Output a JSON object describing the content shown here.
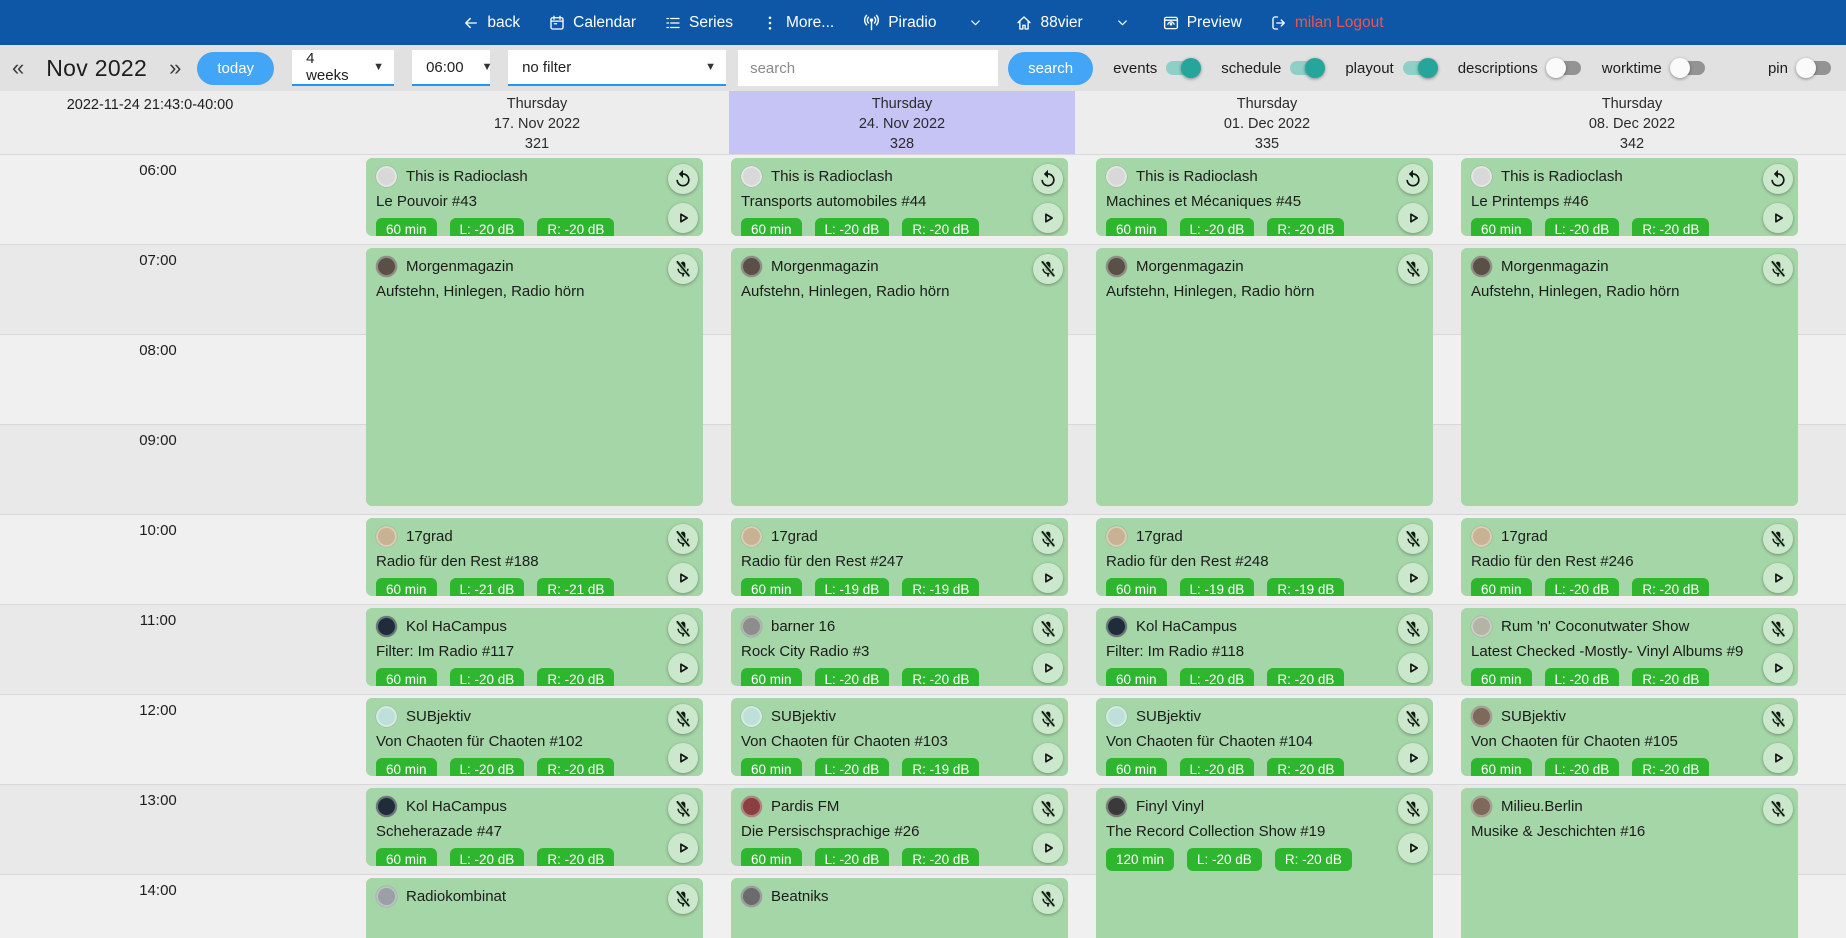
{
  "navbar": {
    "items": [
      {
        "icon": "arrow-left-icon",
        "label": "back"
      },
      {
        "icon": "calendar-icon",
        "label": "Calendar"
      },
      {
        "icon": "list-icon",
        "label": "Series"
      },
      {
        "icon": "kebab-icon",
        "label": "More..."
      },
      {
        "icon": "antenna-icon",
        "label": "Piradio"
      },
      {
        "icon": "chevron-down-icon",
        "label": ""
      },
      {
        "icon": "home-icon",
        "label": "88vier"
      },
      {
        "icon": "chevron-down-icon",
        "label": ""
      },
      {
        "icon": "preview-icon",
        "label": "Preview"
      },
      {
        "icon": "logout-icon",
        "label": "milan Logout",
        "color": "#ef5350"
      }
    ]
  },
  "toolbar": {
    "prev_label": "«",
    "month": "Nov 2022",
    "next_label": "»",
    "today_label": "today",
    "range_value": "4 weeks",
    "time_value": "06:00",
    "filter_value": "no filter",
    "search_placeholder": "search",
    "search_label": "search",
    "toggles": [
      {
        "label": "events",
        "on": true
      },
      {
        "label": "schedule",
        "on": true
      },
      {
        "label": "playout",
        "on": true
      },
      {
        "label": "descriptions",
        "on": false
      },
      {
        "label": "worktime",
        "on": false
      }
    ],
    "pin_toggle": {
      "label": "pin",
      "on": false
    }
  },
  "colors": {
    "navbar": "#0d57a6",
    "accent_blue": "#42a5f5",
    "underline_blue": "#2196f3",
    "event_green": "#a5d6a7",
    "badge_green": "#2eb62e",
    "toggle_on": "#26a69a",
    "highlight_purple": "#c6c4f4",
    "logout_red": "#ef5350"
  },
  "grid": {
    "timestamp": "2022-11-24 21:43:0-40:00",
    "times": [
      "06:00",
      "07:00",
      "08:00",
      "09:00",
      "10:00",
      "11:00",
      "12:00",
      "13:00",
      "14:00"
    ],
    "columns": [
      {
        "day": "Thursday",
        "date": "17. Nov 2022",
        "day_number": "321",
        "highlighted": false,
        "events": [
          {
            "show": "This is Radioclash",
            "episode": "Le Pouvoir #43",
            "start": 6,
            "hours": 1,
            "badges": [
              "60 min",
              "L: -20 dB",
              "R: -20 dB"
            ],
            "icons": [
              "replay",
              "play"
            ],
            "logo": "#d8d8d8"
          },
          {
            "show": "Morgenmagazin",
            "episode": "Aufstehn, Hinlegen, Radio hörn",
            "start": 7,
            "hours": 3,
            "badges": [],
            "icons": [
              "mic-off"
            ],
            "logo": "#5a5048"
          },
          {
            "show": "17grad",
            "episode": "Radio für den Rest #188",
            "start": 10,
            "hours": 1,
            "badges": [
              "60 min",
              "L: -21 dB",
              "R: -21 dB"
            ],
            "icons": [
              "mic-off",
              "play"
            ],
            "logo": "#c9b294"
          },
          {
            "show": "Kol HaCampus",
            "episode": "Filter: Im Radio #117",
            "start": 11,
            "hours": 1,
            "badges": [
              "60 min",
              "L: -20 dB",
              "R: -20 dB"
            ],
            "icons": [
              "mic-off",
              "play"
            ],
            "logo": "#1f2d3a"
          },
          {
            "show": "SUBjektiv",
            "episode": "Von Chaoten für Chaoten #102",
            "start": 12,
            "hours": 1,
            "badges": [
              "60 min",
              "L: -20 dB",
              "R: -20 dB"
            ],
            "icons": [
              "mic-off",
              "play"
            ],
            "logo": "#bfe0d8"
          },
          {
            "show": "Kol HaCampus",
            "episode": "Scheherazade #47",
            "start": 13,
            "hours": 1,
            "badges": [
              "60 min",
              "L: -20 dB",
              "R: -20 dB"
            ],
            "icons": [
              "mic-off",
              "play"
            ],
            "logo": "#1f2d3a"
          },
          {
            "show": "Radiokombinat",
            "episode": "",
            "start": 14,
            "hours": 1,
            "badges": [],
            "icons": [
              "mic-off"
            ],
            "logo": "#9aa0a6"
          }
        ]
      },
      {
        "day": "Thursday",
        "date": "24. Nov 2022",
        "day_number": "328",
        "highlighted": true,
        "events": [
          {
            "show": "This is Radioclash",
            "episode": "Transports automobiles #44",
            "start": 6,
            "hours": 1,
            "badges": [
              "60 min",
              "L: -20 dB",
              "R: -20 dB"
            ],
            "icons": [
              "replay",
              "play"
            ],
            "logo": "#d8d8d8"
          },
          {
            "show": "Morgenmagazin",
            "episode": "Aufstehn, Hinlegen, Radio hörn",
            "start": 7,
            "hours": 3,
            "badges": [],
            "icons": [
              "mic-off"
            ],
            "logo": "#5a5048"
          },
          {
            "show": "17grad",
            "episode": "Radio für den Rest #247",
            "start": 10,
            "hours": 1,
            "badges": [
              "60 min",
              "L: -19 dB",
              "R: -19 dB"
            ],
            "icons": [
              "mic-off",
              "play"
            ],
            "logo": "#c9b294"
          },
          {
            "show": "barner 16",
            "episode": "Rock City Radio #3",
            "start": 11,
            "hours": 1,
            "badges": [
              "60 min",
              "L: -20 dB",
              "R: -20 dB"
            ],
            "icons": [
              "mic-off",
              "play"
            ],
            "logo": "#8d8d8d"
          },
          {
            "show": "SUBjektiv",
            "episode": "Von Chaoten für Chaoten #103",
            "start": 12,
            "hours": 1,
            "badges": [
              "60 min",
              "L: -20 dB",
              "R: -19 dB"
            ],
            "icons": [
              "mic-off",
              "play"
            ],
            "logo": "#bfe0d8"
          },
          {
            "show": "Pardis FM",
            "episode": "Die Persischsprachige #26",
            "start": 13,
            "hours": 1,
            "badges": [
              "60 min",
              "L: -20 dB",
              "R: -20 dB"
            ],
            "icons": [
              "mic-off",
              "play"
            ],
            "logo": "#8a4040"
          },
          {
            "show": "Beatniks",
            "episode": "",
            "start": 14,
            "hours": 1,
            "badges": [],
            "icons": [
              "mic-off"
            ],
            "logo": "#6b6b6b"
          }
        ]
      },
      {
        "day": "Thursday",
        "date": "01. Dec 2022",
        "day_number": "335",
        "highlighted": false,
        "events": [
          {
            "show": "This is Radioclash",
            "episode": "Machines et Mécaniques #45",
            "start": 6,
            "hours": 1,
            "badges": [
              "60 min",
              "L: -20 dB",
              "R: -20 dB"
            ],
            "icons": [
              "replay",
              "play"
            ],
            "logo": "#d8d8d8"
          },
          {
            "show": "Morgenmagazin",
            "episode": "Aufstehn, Hinlegen, Radio hörn",
            "start": 7,
            "hours": 3,
            "badges": [],
            "icons": [
              "mic-off"
            ],
            "logo": "#5a5048"
          },
          {
            "show": "17grad",
            "episode": "Radio für den Rest #248",
            "start": 10,
            "hours": 1,
            "badges": [
              "60 min",
              "L: -19 dB",
              "R: -19 dB"
            ],
            "icons": [
              "mic-off",
              "play"
            ],
            "logo": "#c9b294"
          },
          {
            "show": "Kol HaCampus",
            "episode": "Filter: Im Radio #118",
            "start": 11,
            "hours": 1,
            "badges": [
              "60 min",
              "L: -20 dB",
              "R: -20 dB"
            ],
            "icons": [
              "mic-off",
              "play"
            ],
            "logo": "#1f2d3a"
          },
          {
            "show": "SUBjektiv",
            "episode": "Von Chaoten für Chaoten #104",
            "start": 12,
            "hours": 1,
            "badges": [
              "60 min",
              "L: -20 dB",
              "R: -20 dB"
            ],
            "icons": [
              "mic-off",
              "play"
            ],
            "logo": "#bfe0d8"
          },
          {
            "show": "Finyl Vinyl",
            "episode": "The Record Collection Show #19",
            "start": 13,
            "hours": 2,
            "badges": [
              "120 min",
              "L: -20 dB",
              "R: -20 dB"
            ],
            "icons": [
              "mic-off",
              "play"
            ],
            "logo": "#3a3a3a"
          }
        ]
      },
      {
        "day": "Thursday",
        "date": "08. Dec 2022",
        "day_number": "342",
        "highlighted": false,
        "events": [
          {
            "show": "This is Radioclash",
            "episode": "Le Printemps #46",
            "start": 6,
            "hours": 1,
            "badges": [
              "60 min",
              "L: -20 dB",
              "R: -20 dB"
            ],
            "icons": [
              "replay",
              "play"
            ],
            "logo": "#d8d8d8"
          },
          {
            "show": "Morgenmagazin",
            "episode": "Aufstehn, Hinlegen, Radio hörn",
            "start": 7,
            "hours": 3,
            "badges": [],
            "icons": [
              "mic-off"
            ],
            "logo": "#5a5048"
          },
          {
            "show": "17grad",
            "episode": "Radio für den Rest #246",
            "start": 10,
            "hours": 1,
            "badges": [
              "60 min",
              "L: -20 dB",
              "R: -20 dB"
            ],
            "icons": [
              "mic-off",
              "play"
            ],
            "logo": "#c9b294"
          },
          {
            "show": "Rum 'n' Coconutwater Show",
            "episode": "Latest Checked -Mostly- Vinyl Albums #9",
            "start": 11,
            "hours": 1,
            "badges": [
              "60 min",
              "L: -20 dB",
              "R: -20 dB"
            ],
            "icons": [
              "mic-off",
              "play"
            ],
            "logo": "#b3b3a6"
          },
          {
            "show": "SUBjektiv",
            "episode": "Von Chaoten für Chaoten #105",
            "start": 12,
            "hours": 1,
            "badges": [
              "60 min",
              "L: -20 dB",
              "R: -20 dB"
            ],
            "icons": [
              "mic-off",
              "play"
            ],
            "logo": "#7d6a5c"
          },
          {
            "show": "Milieu.Berlin",
            "episode": "Musike & Jeschichten #16",
            "start": 13,
            "hours": 2,
            "badges": [],
            "icons": [
              "mic-off"
            ],
            "logo": "#7d6a5c"
          }
        ]
      }
    ]
  }
}
